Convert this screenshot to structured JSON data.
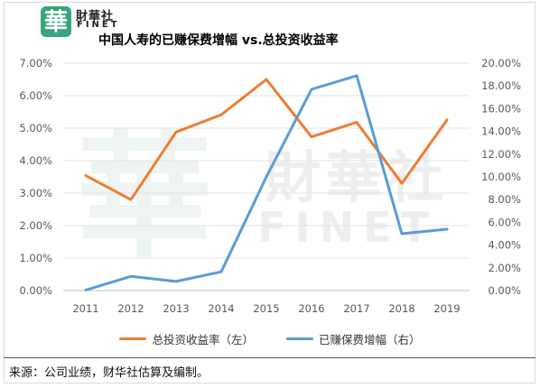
{
  "brand": {
    "name_cn": "財華社",
    "name_en": "FINET",
    "logo_glyph": "華",
    "color": "#3aa57a"
  },
  "title": "中国人寿的已赚保费增幅 vs.总投资收益率",
  "source": "来源：公司业绩，财华社估算及编制。",
  "watermark": {
    "glyph": "華",
    "name_cn": "財華社",
    "name_en": "FINET"
  },
  "chart_data": {
    "type": "line",
    "title": "中国人寿的已赚保费增幅 vs.总投资收益率",
    "categories": [
      "2011",
      "2012",
      "2013",
      "2014",
      "2015",
      "2016",
      "2017",
      "2018",
      "2019"
    ],
    "left_axis": {
      "ylim": [
        0,
        7
      ],
      "ticks": [
        "0.00%",
        "1.00%",
        "2.00%",
        "3.00%",
        "4.00%",
        "5.00%",
        "6.00%",
        "7.00%"
      ]
    },
    "right_axis": {
      "ylim": [
        0,
        20
      ],
      "ticks": [
        "0.00%",
        "2.00%",
        "4.00%",
        "6.00%",
        "8.00%",
        "10.00%",
        "12.00%",
        "14.00%",
        "16.00%",
        "18.00%",
        "20.00%"
      ]
    },
    "series": [
      {
        "name": "总投资收益率（左）",
        "axis": "left",
        "color": "#ed7d31",
        "values": [
          3.54,
          2.8,
          4.88,
          5.41,
          6.5,
          4.73,
          5.18,
          3.3,
          5.25
        ]
      },
      {
        "name": "已赚保费增幅（右）",
        "axis": "right",
        "color": "#5b9bd5",
        "values": [
          0.05,
          1.25,
          0.8,
          1.65,
          10.0,
          17.7,
          18.9,
          5.0,
          5.4
        ]
      }
    ],
    "grid": true,
    "legend_position": "bottom"
  }
}
